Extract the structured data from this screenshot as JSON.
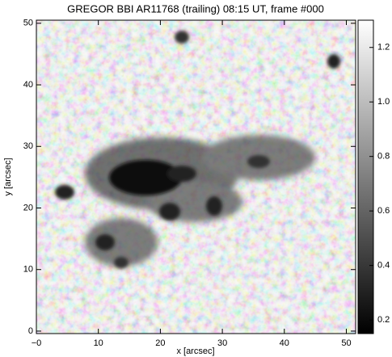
{
  "chart_data": {
    "type": "image",
    "title": "GREGOR BBI AR11768 (trailing) 08:15 UT, frame #000",
    "xlabel": "x [arcsec]",
    "ylabel": "y [arcsec]",
    "xlim": [
      0,
      51.5
    ],
    "ylim": [
      -0.4,
      50.5
    ],
    "xticks": [
      {
        "value": 0,
        "label": "−0"
      },
      10,
      20,
      30,
      40,
      50
    ],
    "yticks": [
      0,
      10,
      20,
      30,
      40,
      50
    ],
    "colorbar": {
      "clim": [
        0.15,
        1.3
      ],
      "ticks": [
        0.2,
        0.4,
        0.6,
        {
          "value": 1,
          "label": "1.0"
        },
        0.8,
        1.2
      ]
    }
  }
}
